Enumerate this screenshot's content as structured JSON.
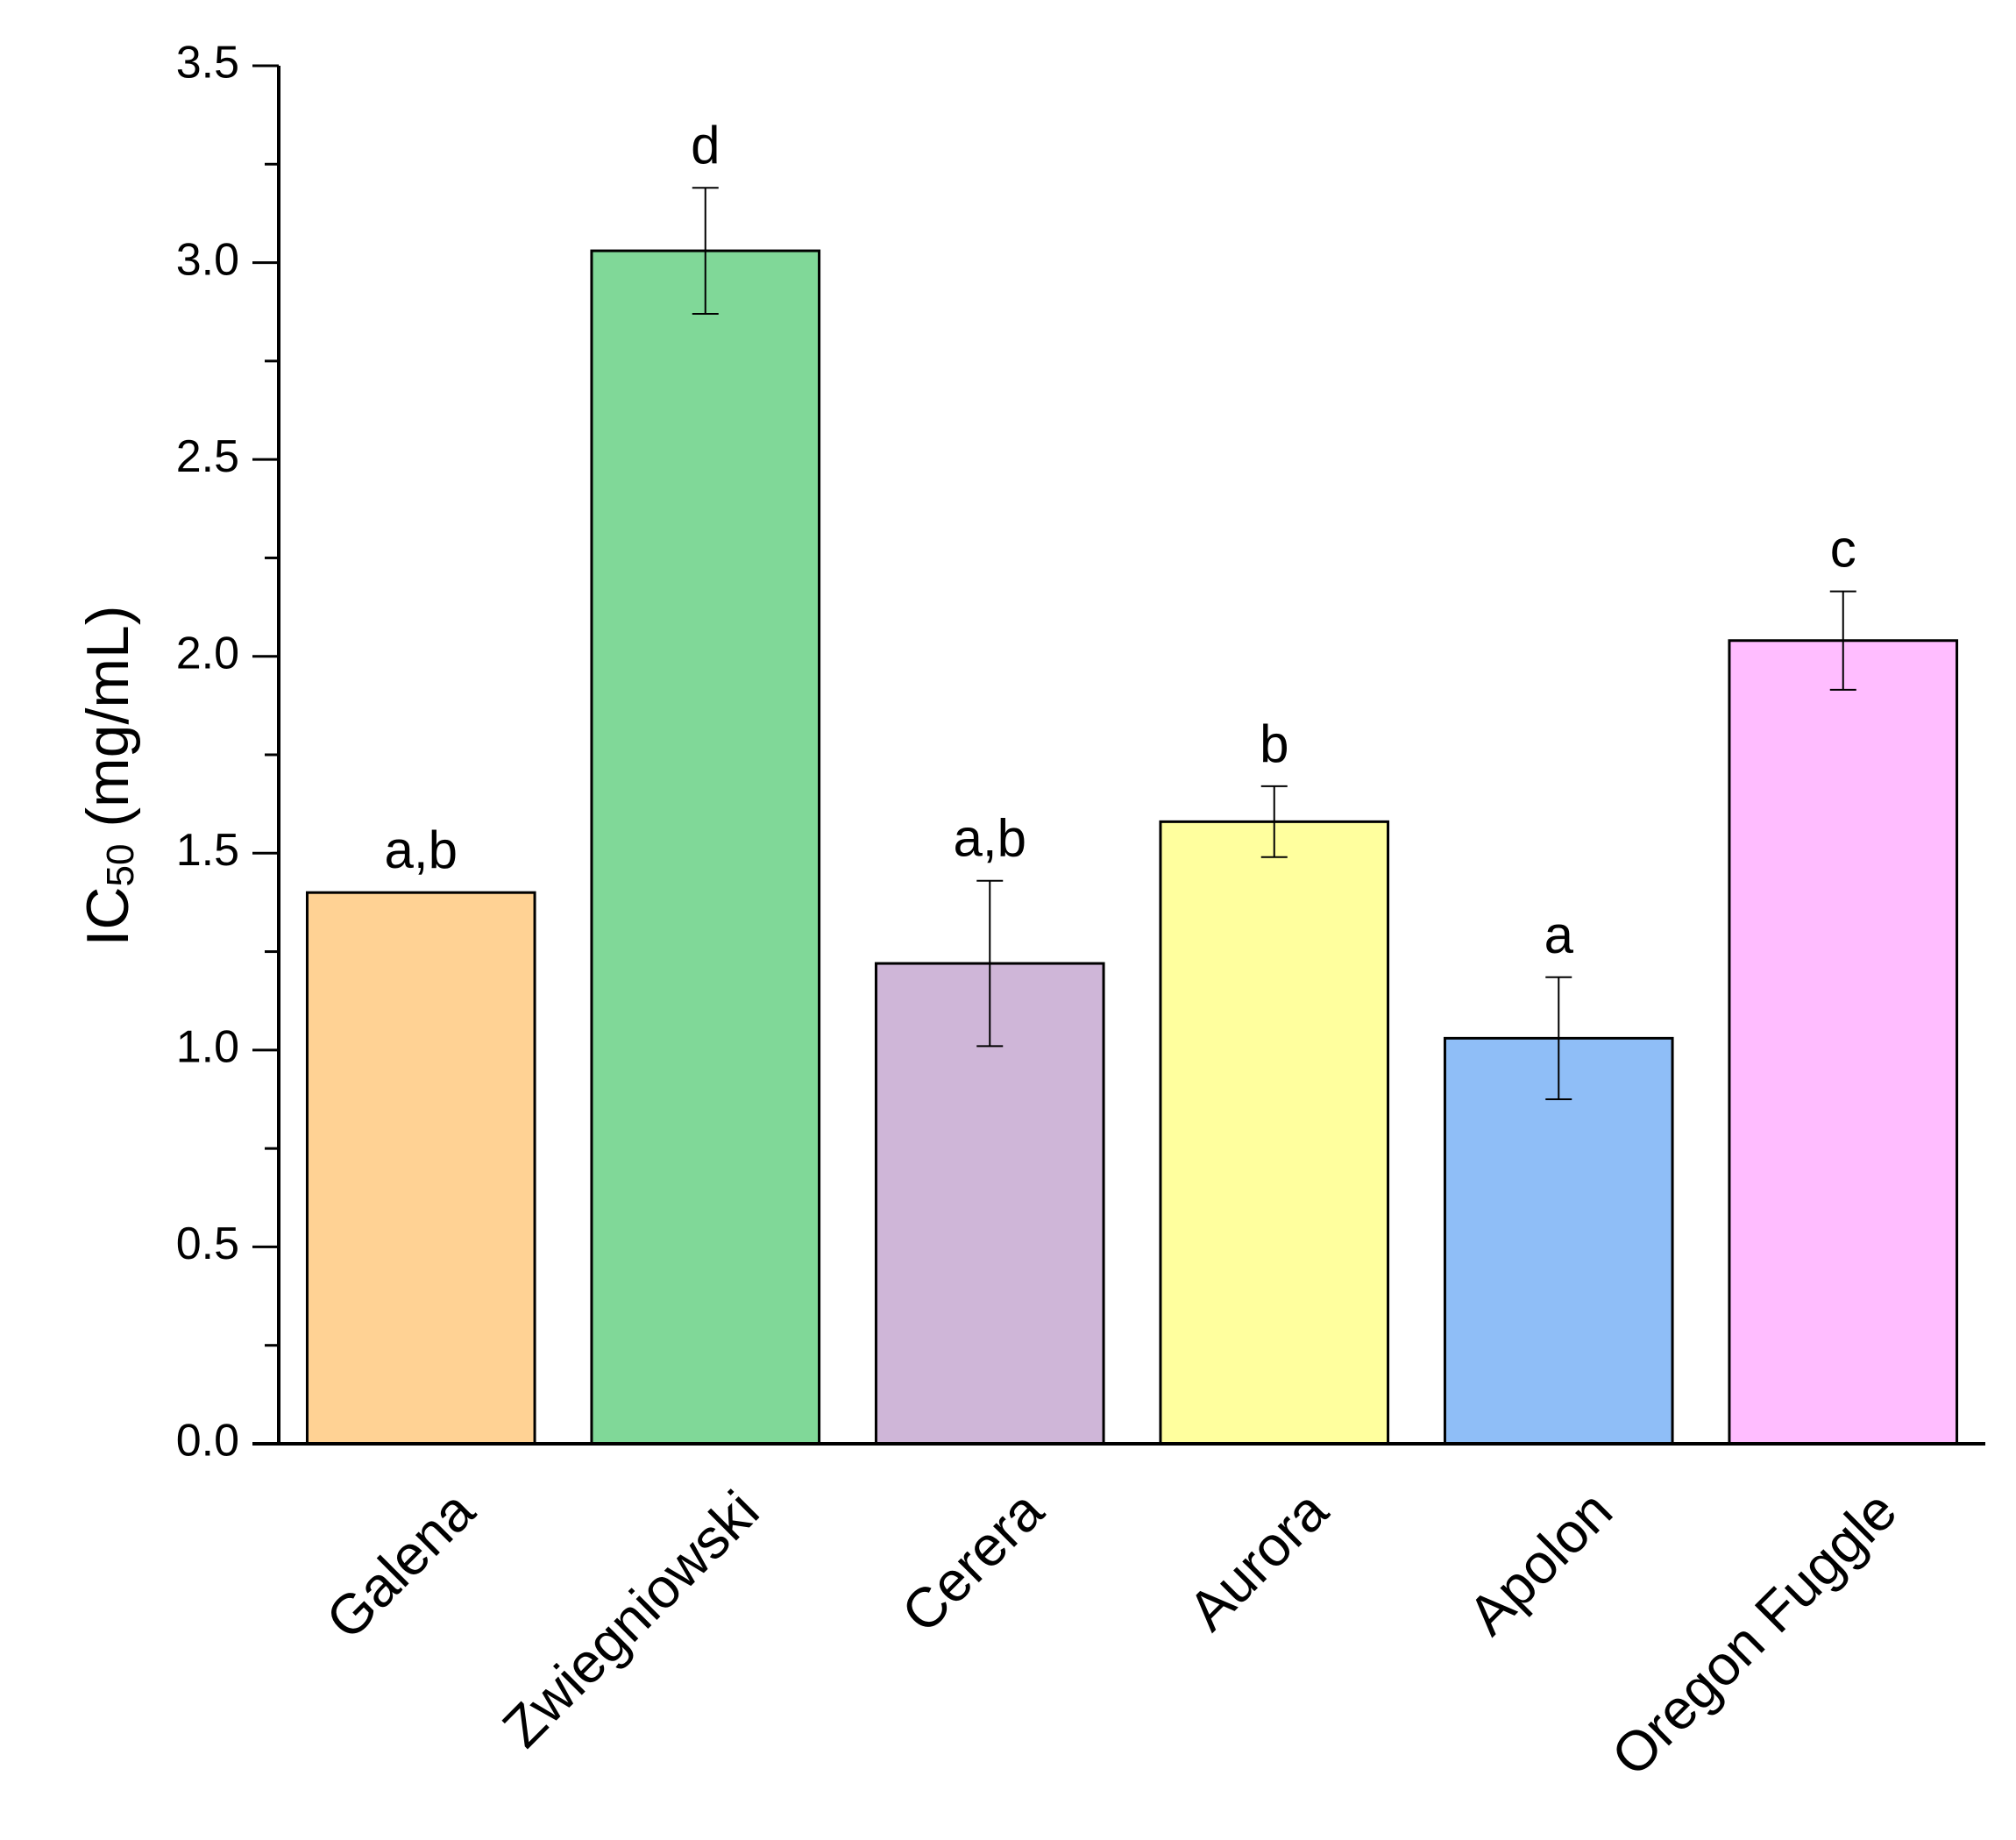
{
  "chart_data": {
    "type": "bar",
    "title": "",
    "xlabel": "",
    "ylabel": {
      "main": "IC",
      "subscript": "50",
      "unit": " (mg/mL)"
    },
    "ylim": [
      0,
      3.5
    ],
    "yticks": [
      "0.0",
      "0.5",
      "1.0",
      "1.5",
      "2.0",
      "2.5",
      "3.0",
      "3.5"
    ],
    "grid": false,
    "categories": [
      "Galena",
      "Zwiegniowski",
      "Cerera",
      "Aurora",
      "Apolon",
      "Oregon Fuggle"
    ],
    "values": [
      1.4,
      3.03,
      1.22,
      1.58,
      1.03,
      2.04
    ],
    "errors": [
      0,
      0.16,
      0.21,
      0.09,
      0.155,
      0.125
    ],
    "significance": [
      "a,b",
      "d",
      "a,b",
      "b",
      "a",
      "c"
    ],
    "colors": [
      "#FFD294",
      "#80D898",
      "#CFB6D8",
      "#FFFF9E",
      "#8FBEF7",
      "#FFBDFF"
    ]
  }
}
